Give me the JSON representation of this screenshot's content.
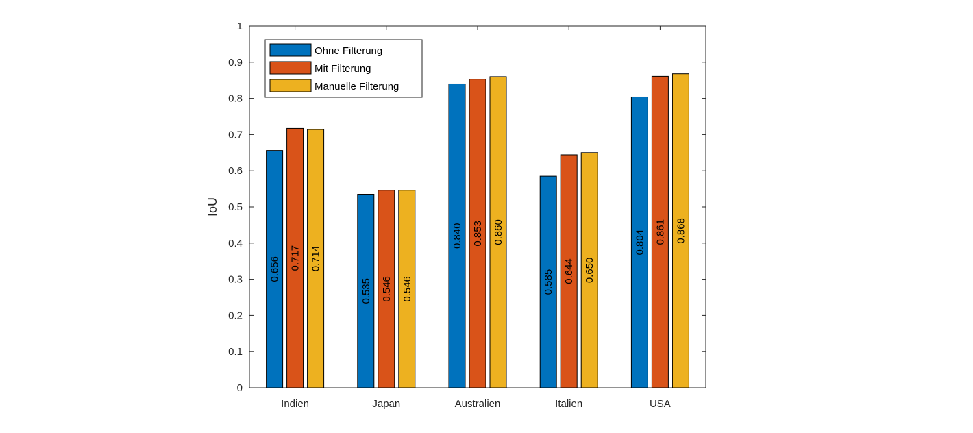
{
  "chart_data": {
    "type": "bar",
    "title": "",
    "xlabel": "",
    "ylabel": "IoU",
    "ylim": [
      0,
      1
    ],
    "yticks": [
      "0",
      "0.1",
      "0.2",
      "0.3",
      "0.4",
      "0.5",
      "0.6",
      "0.7",
      "0.8",
      "0.9",
      "1"
    ],
    "categories": [
      "Indien",
      "Japan",
      "Australien",
      "Italien",
      "USA"
    ],
    "series": [
      {
        "name": "Ohne Filterung",
        "color": "#0072BD",
        "values": [
          0.656,
          0.535,
          0.84,
          0.585,
          0.804
        ],
        "labels": [
          "0.656",
          "0.535",
          "0.840",
          "0.585",
          "0.804"
        ]
      },
      {
        "name": "Mit Filterung",
        "color": "#D95319",
        "values": [
          0.717,
          0.546,
          0.853,
          0.644,
          0.861
        ],
        "labels": [
          "0.717",
          "0.546",
          "0.853",
          "0.644",
          "0.861"
        ]
      },
      {
        "name": "Manuelle Filterung",
        "color": "#EDB120",
        "values": [
          0.714,
          0.546,
          0.86,
          0.65,
          0.868
        ],
        "labels": [
          "0.714",
          "0.546",
          "0.860",
          "0.650",
          "0.868"
        ]
      }
    ],
    "grid": false,
    "legend": "top-left"
  }
}
